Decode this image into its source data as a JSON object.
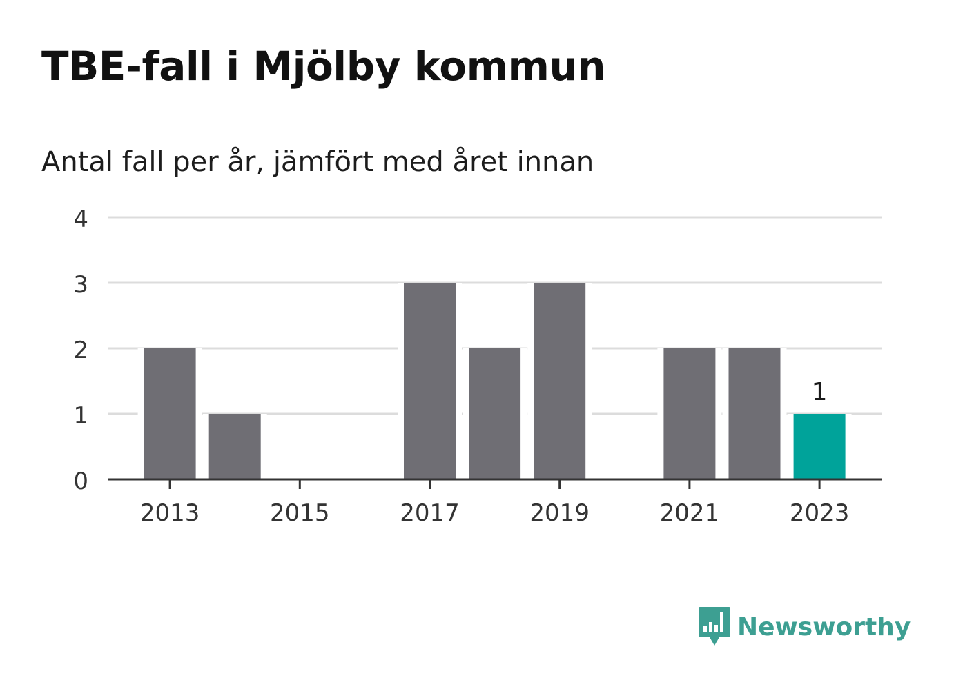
{
  "title": "TBE-fall i Mjölby kommun",
  "subtitle": "Antal fall per år, jämfört med året innan",
  "logo": {
    "text": "Newsworthy",
    "icon": "bar-chart-speech-bubble-icon",
    "color": "#3d9f92"
  },
  "colors": {
    "bar": "#6f6e74",
    "highlight": "#00a39a",
    "grid": "#dcdcdc",
    "axis": "#333333",
    "text": "#333333"
  },
  "chart_data": {
    "type": "bar",
    "title": "TBE-fall i Mjölby kommun",
    "subtitle": "Antal fall per år, jämfört med året innan",
    "categories": [
      "2013",
      "2014",
      "2015",
      "2016",
      "2017",
      "2018",
      "2019",
      "2020",
      "2021",
      "2022",
      "2023"
    ],
    "values": [
      2,
      1,
      0,
      0,
      3,
      2,
      3,
      0,
      2,
      2,
      1
    ],
    "highlight_index": 10,
    "data_labels": [
      {
        "index": 10,
        "text": "1"
      }
    ],
    "x_tick_labels": [
      "2013",
      "2015",
      "2017",
      "2019",
      "2021",
      "2023"
    ],
    "y_ticks": [
      "0",
      "1",
      "2",
      "3",
      "4"
    ],
    "ylim": [
      0,
      4
    ],
    "grid": true,
    "legend": "none"
  }
}
